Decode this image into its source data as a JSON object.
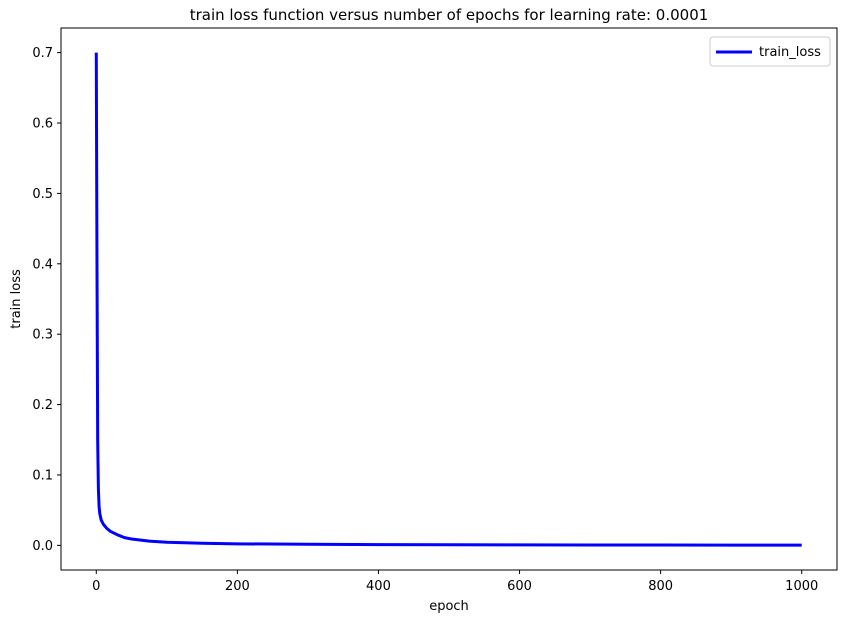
{
  "chart_data": {
    "type": "line",
    "title": "train loss function versus number of epochs for learning rate: 0.0001",
    "xlabel": "epoch",
    "ylabel": "train loss",
    "xlim": [
      -50,
      1050
    ],
    "ylim": [
      -0.035,
      0.735
    ],
    "x_ticks": [
      0,
      200,
      400,
      600,
      800,
      1000
    ],
    "y_ticks": [
      0.0,
      0.1,
      0.2,
      0.3,
      0.4,
      0.5,
      0.6,
      0.7
    ],
    "y_tick_labels": [
      "0.0",
      "0.1",
      "0.2",
      "0.3",
      "0.4",
      "0.5",
      "0.6",
      "0.7"
    ],
    "grid": false,
    "legend_position": "top-right",
    "series": [
      {
        "name": "train_loss",
        "color": "#0000ff",
        "x": [
          0,
          1,
          2,
          3,
          4,
          5,
          7,
          10,
          15,
          20,
          30,
          40,
          50,
          75,
          100,
          150,
          200,
          300,
          400,
          500,
          600,
          700,
          800,
          900,
          1000
        ],
        "y": [
          0.7,
          0.4,
          0.15,
          0.08,
          0.055,
          0.045,
          0.036,
          0.03,
          0.024,
          0.02,
          0.015,
          0.011,
          0.009,
          0.006,
          0.0045,
          0.003,
          0.0022,
          0.0015,
          0.0011,
          0.0009,
          0.0007,
          0.0006,
          0.0005,
          0.0004,
          0.0004
        ]
      }
    ]
  }
}
